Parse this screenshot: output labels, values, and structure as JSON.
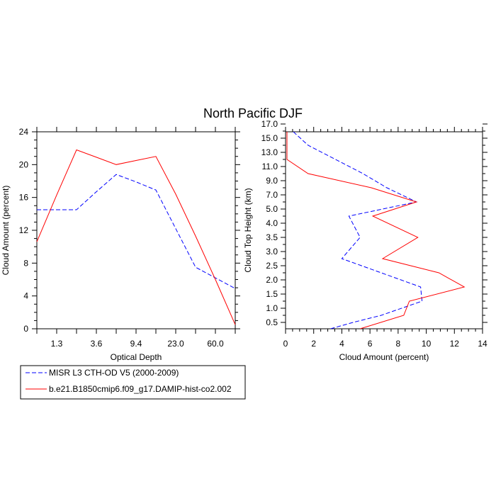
{
  "title": "North Pacific DJF",
  "colors": {
    "obs": "#0000ff",
    "model": "#ff0000"
  },
  "chart_data": [
    {
      "type": "line",
      "xlabel": "Optical Depth",
      "ylabel": "Cloud Amount (percent)",
      "categories": [
        "",
        "1.3",
        "",
        "3.6",
        "",
        "9.4",
        "",
        "23.0",
        "",
        "60.0",
        ""
      ],
      "ylim": [
        0,
        24
      ],
      "yticks": [
        "0",
        "4",
        "8",
        "12",
        "16",
        "20",
        "24"
      ],
      "grid": false,
      "series": [
        {
          "name": "MISR L3 CTH-OD V5 (2000-2009)",
          "style": "dashed",
          "values": [
            14.5,
            14.5,
            14.5,
            16.7,
            18.8,
            17.9,
            16.9,
            12.2,
            7.5,
            6.2,
            4.9
          ]
        },
        {
          "name": "b.e21.B1850cmip6.f09_g17.DAMIP-hist-co2.002",
          "style": "solid",
          "values": [
            10.6,
            16.3,
            21.8,
            20.9,
            20.0,
            20.5,
            21.0,
            16.4,
            11.3,
            6.0,
            0.5
          ]
        }
      ]
    },
    {
      "type": "line",
      "xlabel": "Cloud Amount (percent)",
      "ylabel": "Cloud Top Height (km)",
      "xlim": [
        0,
        14
      ],
      "xticks": [
        "0",
        "2",
        "4",
        "6",
        "8",
        "10",
        "12",
        "14"
      ],
      "height_ticks": [
        "0.5",
        "1.0",
        "1.5",
        "2.0",
        "2.5",
        "3.0",
        "3.5",
        "4.0",
        "5.0",
        "7.0",
        "9.0",
        "11.0",
        "13.0",
        "15.0",
        "17.0"
      ],
      "grid": false,
      "series": [
        {
          "name": "MISR L3 CTH-OD V5 (2000-2009)",
          "style": "dashed",
          "points": [
            [
              3.2,
              0.0
            ],
            [
              4.8,
              0.5
            ],
            [
              6.8,
              0.75
            ],
            [
              9.7,
              1.25
            ],
            [
              9.6,
              1.75
            ],
            [
              4.0,
              2.75
            ],
            [
              5.3,
              3.5
            ],
            [
              4.5,
              4.5
            ],
            [
              9.3,
              6.0
            ],
            [
              7.2,
              8.0
            ],
            [
              5.5,
              10.0
            ],
            [
              1.6,
              14.0
            ],
            [
              0.5,
              16.0
            ],
            [
              0.2,
              17.5
            ]
          ]
        },
        {
          "name": "b.e21.B1850cmip6.f09_g17.DAMIP-hist-co2.002",
          "style": "solid",
          "points": [
            [
              5.3,
              0.0
            ],
            [
              8.4,
              0.75
            ],
            [
              8.8,
              1.25
            ],
            [
              12.7,
              1.75
            ],
            [
              10.9,
              2.25
            ],
            [
              6.9,
              2.75
            ],
            [
              9.4,
              3.5
            ],
            [
              6.2,
              4.5
            ],
            [
              9.3,
              6.0
            ],
            [
              6.1,
              8.0
            ],
            [
              1.6,
              10.0
            ],
            [
              0.1,
              12.0
            ],
            [
              0.1,
              14.0
            ],
            [
              0.1,
              17.5
            ]
          ]
        }
      ]
    }
  ],
  "legend": [
    {
      "label": "MISR L3 CTH-OD V5 (2000-2009)"
    },
    {
      "label": "b.e21.B1850cmip6.f09_g17.DAMIP-hist-co2.002"
    }
  ]
}
